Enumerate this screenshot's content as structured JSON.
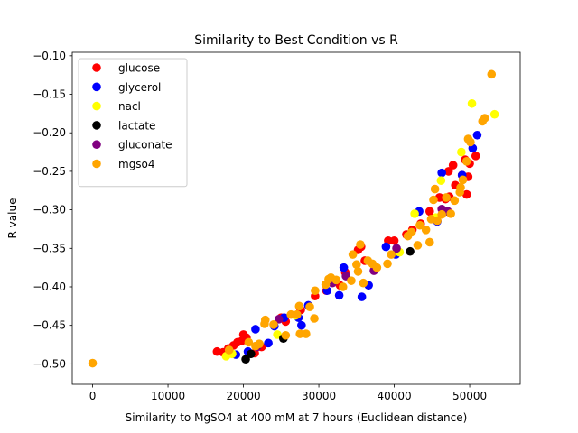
{
  "chart_data": {
    "type": "scatter",
    "title": "Similarity to Best Condition vs R",
    "xlabel": "Similarity to MgSO4 at 400 mM at 7 hours (Euclidean distance)",
    "ylabel": "R value",
    "xlim": [
      -2700,
      56700
    ],
    "ylim": [
      -0.5265,
      -0.0955
    ],
    "xticks": [
      0,
      10000,
      20000,
      30000,
      40000,
      50000
    ],
    "xtick_labels": [
      "0",
      "10000",
      "20000",
      "30000",
      "40000",
      "50000"
    ],
    "yticks": [
      -0.5,
      -0.45,
      -0.4,
      -0.35,
      -0.3,
      -0.25,
      -0.2,
      -0.15,
      -0.1
    ],
    "ytick_labels": [
      "−0.50",
      "−0.45",
      "−0.40",
      "−0.35",
      "−0.30",
      "−0.25",
      "−0.20",
      "−0.15",
      "−0.10"
    ],
    "grid": false,
    "legend_position": "top-left",
    "series": [
      {
        "name": "glucose",
        "color": "#ff0000",
        "points": [
          [
            16500,
            -0.484
          ],
          [
            17300,
            -0.485
          ],
          [
            18000,
            -0.48
          ],
          [
            18700,
            -0.476
          ],
          [
            19200,
            -0.472
          ],
          [
            19800,
            -0.47
          ],
          [
            20000,
            -0.462
          ],
          [
            20400,
            -0.466
          ],
          [
            21500,
            -0.486
          ],
          [
            22400,
            -0.478
          ],
          [
            25000,
            -0.44
          ],
          [
            25600,
            -0.445
          ],
          [
            27600,
            -0.43
          ],
          [
            29500,
            -0.412
          ],
          [
            31000,
            -0.405
          ],
          [
            32800,
            -0.398
          ],
          [
            33500,
            -0.381
          ],
          [
            35200,
            -0.352
          ],
          [
            35600,
            -0.348
          ],
          [
            36100,
            -0.366
          ],
          [
            39200,
            -0.34
          ],
          [
            40000,
            -0.34
          ],
          [
            41600,
            -0.332
          ],
          [
            42400,
            -0.326
          ],
          [
            43500,
            -0.318
          ],
          [
            44700,
            -0.302
          ],
          [
            46000,
            -0.284
          ],
          [
            46800,
            -0.286
          ],
          [
            47300,
            -0.283
          ],
          [
            48100,
            -0.268
          ],
          [
            49000,
            -0.255
          ],
          [
            49400,
            -0.235
          ],
          [
            49800,
            -0.257
          ],
          [
            49600,
            -0.28
          ],
          [
            50000,
            -0.24
          ],
          [
            50800,
            -0.23
          ],
          [
            47200,
            -0.25
          ],
          [
            47800,
            -0.242
          ]
        ]
      },
      {
        "name": "glycerol",
        "color": "#0000ff",
        "points": [
          [
            19000,
            -0.488
          ],
          [
            20600,
            -0.484
          ],
          [
            21600,
            -0.455
          ],
          [
            23300,
            -0.473
          ],
          [
            24100,
            -0.451
          ],
          [
            25400,
            -0.44
          ],
          [
            27300,
            -0.44
          ],
          [
            27700,
            -0.45
          ],
          [
            28600,
            -0.424
          ],
          [
            31100,
            -0.405
          ],
          [
            32700,
            -0.411
          ],
          [
            33300,
            -0.375
          ],
          [
            35700,
            -0.413
          ],
          [
            36600,
            -0.398
          ],
          [
            38900,
            -0.348
          ],
          [
            40200,
            -0.358
          ],
          [
            43300,
            -0.302
          ],
          [
            45700,
            -0.315
          ],
          [
            46300,
            -0.252
          ],
          [
            49000,
            -0.255
          ],
          [
            51000,
            -0.203
          ],
          [
            50400,
            -0.22
          ]
        ]
      },
      {
        "name": "nacl",
        "color": "#ffff00",
        "points": [
          [
            17700,
            -0.49
          ],
          [
            18500,
            -0.487
          ],
          [
            24500,
            -0.462
          ],
          [
            26900,
            -0.437
          ],
          [
            40700,
            -0.355
          ],
          [
            42700,
            -0.305
          ],
          [
            45500,
            -0.31
          ],
          [
            46200,
            -0.262
          ],
          [
            48900,
            -0.225
          ],
          [
            50300,
            -0.162
          ],
          [
            53300,
            -0.176
          ]
        ]
      },
      {
        "name": "lactate",
        "color": "#000000",
        "points": [
          [
            20300,
            -0.494
          ],
          [
            21000,
            -0.487
          ],
          [
            25300,
            -0.467
          ],
          [
            42100,
            -0.354
          ]
        ]
      },
      {
        "name": "gluconate",
        "color": "#800080",
        "points": [
          [
            21800,
            -0.478
          ],
          [
            24700,
            -0.442
          ],
          [
            31800,
            -0.395
          ],
          [
            33600,
            -0.386
          ],
          [
            37300,
            -0.379
          ],
          [
            40300,
            -0.35
          ],
          [
            46300,
            -0.299
          ],
          [
            47100,
            -0.302
          ]
        ]
      },
      {
        "name": "mgso4",
        "color": "#ffa500",
        "points": [
          [
            0,
            -0.499
          ],
          [
            18100,
            -0.482
          ],
          [
            20700,
            -0.472
          ],
          [
            21600,
            -0.477
          ],
          [
            22100,
            -0.474
          ],
          [
            22800,
            -0.448
          ],
          [
            22900,
            -0.443
          ],
          [
            24000,
            -0.449
          ],
          [
            25600,
            -0.463
          ],
          [
            26300,
            -0.436
          ],
          [
            27100,
            -0.436
          ],
          [
            27500,
            -0.461
          ],
          [
            27400,
            -0.425
          ],
          [
            28300,
            -0.461
          ],
          [
            28800,
            -0.426
          ],
          [
            29400,
            -0.441
          ],
          [
            29500,
            -0.405
          ],
          [
            30900,
            -0.397
          ],
          [
            31300,
            -0.39
          ],
          [
            31600,
            -0.388
          ],
          [
            32300,
            -0.391
          ],
          [
            33200,
            -0.4
          ],
          [
            34300,
            -0.392
          ],
          [
            34500,
            -0.358
          ],
          [
            35000,
            -0.371
          ],
          [
            35200,
            -0.38
          ],
          [
            35500,
            -0.345
          ],
          [
            35900,
            -0.395
          ],
          [
            36500,
            -0.366
          ],
          [
            37100,
            -0.37
          ],
          [
            37700,
            -0.375
          ],
          [
            39100,
            -0.37
          ],
          [
            39600,
            -0.358
          ],
          [
            41800,
            -0.334
          ],
          [
            42300,
            -0.329
          ],
          [
            43100,
            -0.346
          ],
          [
            43400,
            -0.32
          ],
          [
            44200,
            -0.326
          ],
          [
            44700,
            -0.342
          ],
          [
            44900,
            -0.312
          ],
          [
            45200,
            -0.287
          ],
          [
            45400,
            -0.273
          ],
          [
            45700,
            -0.314
          ],
          [
            46300,
            -0.306
          ],
          [
            46900,
            -0.284
          ],
          [
            47500,
            -0.305
          ],
          [
            48000,
            -0.288
          ],
          [
            48700,
            -0.277
          ],
          [
            48800,
            -0.271
          ],
          [
            49100,
            -0.261
          ],
          [
            49600,
            -0.237
          ],
          [
            49800,
            -0.208
          ],
          [
            50100,
            -0.212
          ],
          [
            51700,
            -0.185
          ],
          [
            52000,
            -0.181
          ],
          [
            52900,
            -0.124
          ]
        ]
      }
    ]
  }
}
